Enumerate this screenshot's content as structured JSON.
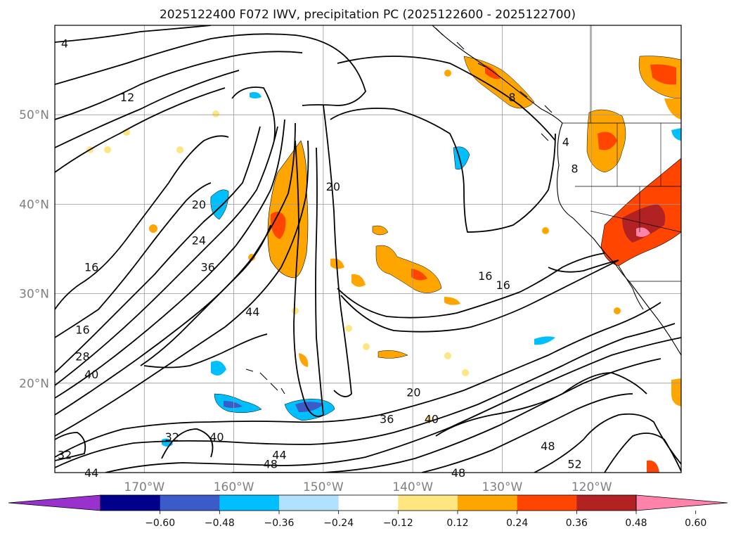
{
  "title": "2025122400 F072 IWV, precipitation PC (2025122600 - 2025122700)",
  "map": {
    "lon_range": [
      -180,
      -110
    ],
    "lat_range": [
      10,
      60
    ],
    "lon_ticks": [
      {
        "value": -170,
        "label": "170°W"
      },
      {
        "value": -160,
        "label": "160°W"
      },
      {
        "value": -150,
        "label": "150°W"
      },
      {
        "value": -140,
        "label": "140°W"
      },
      {
        "value": -130,
        "label": "130°W"
      },
      {
        "value": -120,
        "label": "120°W"
      }
    ],
    "lat_ticks": [
      {
        "value": 20,
        "label": "20°N"
      },
      {
        "value": 30,
        "label": "30°N"
      },
      {
        "value": 40,
        "label": "40°N"
      },
      {
        "value": 50,
        "label": "50°N"
      }
    ],
    "grid": true,
    "contour_labels": [
      {
        "text": "4",
        "lon": -180,
        "lat": 58
      },
      {
        "text": "12",
        "lon": -173,
        "lat": 52
      },
      {
        "text": "8",
        "lon": -130,
        "lat": 52
      },
      {
        "text": "4",
        "lon": -124,
        "lat": 47
      },
      {
        "text": "8",
        "lon": -123,
        "lat": 44
      },
      {
        "text": "20",
        "lon": -165,
        "lat": 40
      },
      {
        "text": "24",
        "lon": -165,
        "lat": 36
      },
      {
        "text": "36",
        "lon": -164,
        "lat": 33
      },
      {
        "text": "44",
        "lon": -159,
        "lat": 28
      },
      {
        "text": "16",
        "lon": -177,
        "lat": 33
      },
      {
        "text": "16",
        "lon": -178,
        "lat": 26
      },
      {
        "text": "28",
        "lon": -178,
        "lat": 23
      },
      {
        "text": "40",
        "lon": -177,
        "lat": 21
      },
      {
        "text": "20",
        "lon": -150,
        "lat": 42
      },
      {
        "text": "16",
        "lon": -133,
        "lat": 32
      },
      {
        "text": "16",
        "lon": -131,
        "lat": 31
      },
      {
        "text": "20",
        "lon": -141,
        "lat": 19
      },
      {
        "text": "36",
        "lon": -144,
        "lat": 16
      },
      {
        "text": "40",
        "lon": -139,
        "lat": 16
      },
      {
        "text": "32",
        "lon": -168,
        "lat": 14
      },
      {
        "text": "40",
        "lon": -163,
        "lat": 14
      },
      {
        "text": "44",
        "lon": -156,
        "lat": 12
      },
      {
        "text": "48",
        "lon": -157,
        "lat": 11
      },
      {
        "text": "48",
        "lon": -136,
        "lat": 10
      },
      {
        "text": "48",
        "lon": -126,
        "lat": 13
      },
      {
        "text": "52",
        "lon": -123,
        "lat": 11
      },
      {
        "text": "32",
        "lon": -180,
        "lat": 12
      },
      {
        "text": "44",
        "lon": -177,
        "lat": 10
      }
    ]
  },
  "colorbar": {
    "ticks": [
      "−0.60",
      "−0.48",
      "−0.36",
      "−0.24",
      "−0.12",
      "0.12",
      "0.24",
      "0.36",
      "0.48",
      "0.60"
    ],
    "colors": [
      "#9932cc",
      "#00008b",
      "#3a5bc8",
      "#00bfff",
      "#b0e2ff",
      "#ffffff",
      "#ffe680",
      "#ffa500",
      "#ff4500",
      "#b22222",
      "#ff82ab"
    ]
  }
}
